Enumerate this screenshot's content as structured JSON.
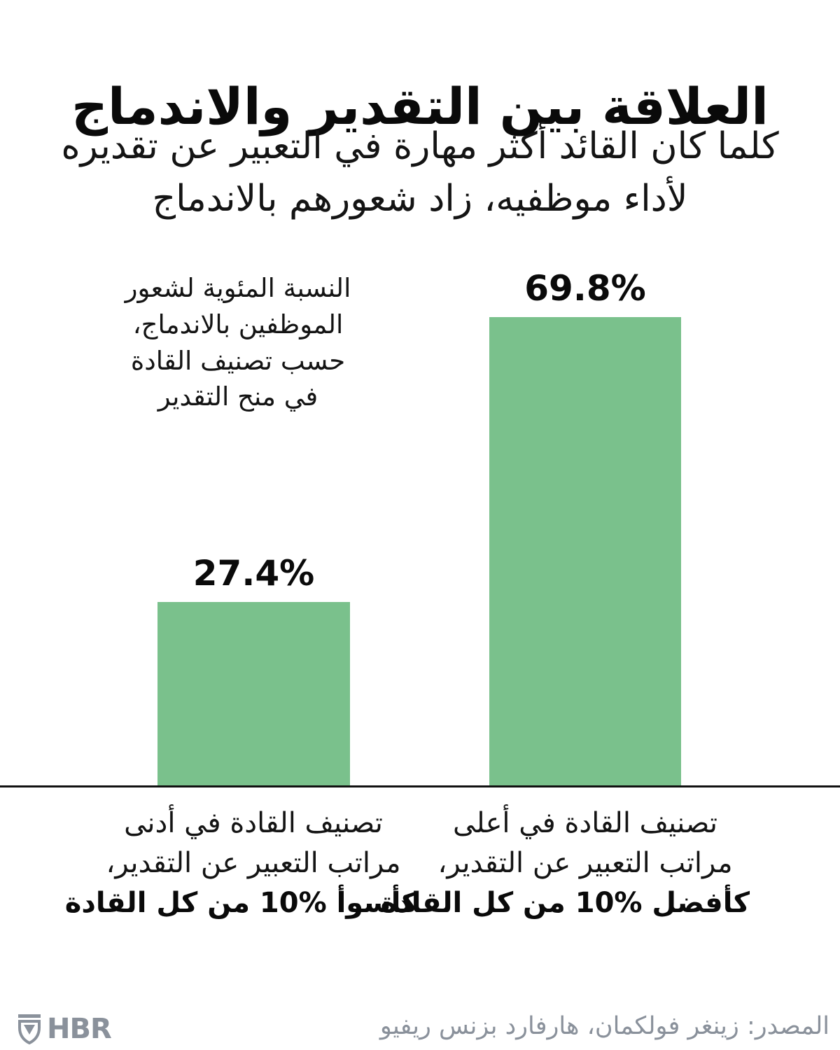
{
  "page": {
    "background": "#ffffff",
    "text_color": "#111111"
  },
  "header": {
    "title": "العلاقة بين التقدير والاندماج",
    "subtitle_line1": "كلما كان القائد أكثر مهارة في التعبير عن تقديره",
    "subtitle_line2": "لأداء موظفيه، زاد شعورهم بالاندماج"
  },
  "chart_data": {
    "type": "bar",
    "title": "العلاقة بين التقدير والاندماج",
    "subtitle": "كلما كان القائد أكثر مهارة في التعبير عن تقديره لأداء موظفيه، زاد شعورهم بالاندماج",
    "ylabel": "النسبة المئوية لشعور الموظفين بالاندماج، حسب تصنيف القادة في منح التقدير",
    "ylabel_lines": [
      "النسبة المئوية لشعور",
      "الموظفين بالاندماج،",
      "حسب تصنيف القادة",
      "في منح التقدير"
    ],
    "categories": [
      "تصنيف القادة في أدنى مراتب التعبير عن التقدير، كأسوأ %10 من كل القادة",
      "تصنيف القادة في أعلى مراتب التعبير عن التقدير، كأفضل %10 من كل القادة"
    ],
    "category_lines": [
      [
        "تصنيف القادة في أدنى",
        "مراتب التعبير عن التقدير،",
        "كأسوأ %10 من كل القادة"
      ],
      [
        "تصنيف القادة في أعلى",
        "مراتب التعبير عن التقدير،",
        "كأفضل %10 من كل القادة"
      ]
    ],
    "values": [
      27.4,
      69.8
    ],
    "value_labels": [
      "27.4%",
      "69.8%"
    ],
    "bar_color": "#7ac18c",
    "axis_line_color": "#111111",
    "ylim": [
      0,
      100
    ],
    "grid": false,
    "legend": false
  },
  "footer": {
    "source": "المصدر: زينغر فولكمان، هارفارد بزنس ريفيو",
    "logo_text": "HBR",
    "logo_color": "#8a919b"
  }
}
